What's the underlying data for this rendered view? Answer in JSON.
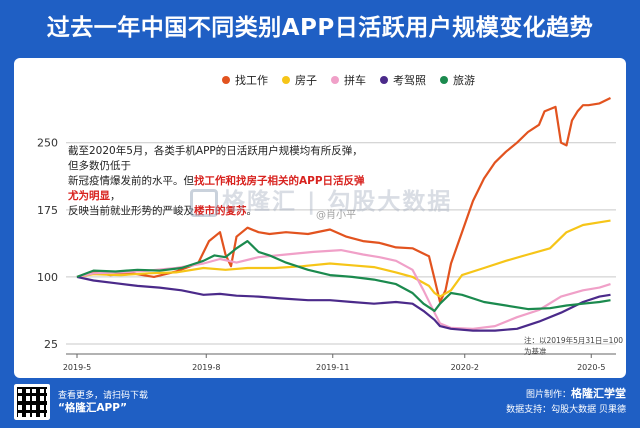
{
  "title": "过去一年中国不同类别APP日活跃用户规模变化趋势",
  "annotation": {
    "line1": "截至2020年5月，各类手机APP的日活跃用户规模均有所反弹，但多数仍低于",
    "line2_normal": "新冠疫情爆发前的水平。但",
    "line2_highlight": "找工作和找房子相关的APP日活反弹尤为明显",
    "line2_tail": "，",
    "line3_normal": "反映当前就业形势的严峻及",
    "line3_highlight": "楼市的复苏",
    "line3_tail": "。"
  },
  "watermark": {
    "brand1": "格隆汇",
    "brand2": "勾股大数据",
    "weibo": "@肖小平"
  },
  "note": "注：以2019年5月31日=100为基准",
  "footer": {
    "line1": "查看更多，请扫码下载",
    "app": "“格隆汇APP”",
    "made_by_label": "图片制作：",
    "made_by": "格隆汇学堂",
    "support": "数据支持：勾股大数据  贝果德"
  },
  "chart_data": {
    "type": "line",
    "title": "过去一年中国不同类别APP日活跃用户规模变化趋势",
    "xlabel": "",
    "ylabel": "",
    "xlim": [
      0,
      100
    ],
    "ylim": [
      25,
      300
    ],
    "y_ticks": [
      25,
      100,
      175,
      250
    ],
    "x_tick_positions": [
      2,
      25.5,
      48.5,
      72.5,
      95.5
    ],
    "x_tick_labels": [
      "2019-5",
      "2019-8",
      "2019-11",
      "2020-2",
      "2020-5"
    ],
    "grid": "horizontal",
    "legend_position": "top",
    "series": [
      {
        "name": "找工作",
        "color": "#e2531f",
        "points": [
          [
            2,
            100
          ],
          [
            5,
            106
          ],
          [
            8,
            102
          ],
          [
            12,
            104
          ],
          [
            16,
            100
          ],
          [
            20,
            106
          ],
          [
            24,
            115
          ],
          [
            26,
            140
          ],
          [
            28,
            150
          ],
          [
            29,
            125
          ],
          [
            30,
            112
          ],
          [
            31,
            145
          ],
          [
            33,
            155
          ],
          [
            35,
            150
          ],
          [
            37,
            148
          ],
          [
            40,
            150
          ],
          [
            44,
            148
          ],
          [
            48,
            153
          ],
          [
            51,
            145
          ],
          [
            54,
            140
          ],
          [
            57,
            138
          ],
          [
            60,
            133
          ],
          [
            63,
            132
          ],
          [
            66,
            123
          ],
          [
            67,
            98
          ],
          [
            68,
            72
          ],
          [
            69,
            85
          ],
          [
            70,
            115
          ],
          [
            72,
            150
          ],
          [
            74,
            185
          ],
          [
            76,
            210
          ],
          [
            78,
            228
          ],
          [
            80,
            240
          ],
          [
            82,
            250
          ],
          [
            84,
            262
          ],
          [
            86,
            270
          ],
          [
            87,
            285
          ],
          [
            89,
            290
          ],
          [
            90,
            250
          ],
          [
            91,
            247
          ],
          [
            92,
            275
          ],
          [
            93,
            285
          ],
          [
            94,
            292
          ],
          [
            95,
            292
          ],
          [
            97,
            294
          ],
          [
            99,
            300
          ]
        ]
      },
      {
        "name": "房子",
        "color": "#f6c518",
        "points": [
          [
            2,
            100
          ],
          [
            5,
            103
          ],
          [
            10,
            102
          ],
          [
            15,
            104
          ],
          [
            20,
            105
          ],
          [
            25,
            110
          ],
          [
            29,
            108
          ],
          [
            33,
            110
          ],
          [
            38,
            110
          ],
          [
            43,
            112
          ],
          [
            48,
            115
          ],
          [
            52,
            113
          ],
          [
            56,
            111
          ],
          [
            60,
            105
          ],
          [
            63,
            100
          ],
          [
            66,
            90
          ],
          [
            67,
            82
          ],
          [
            68,
            78
          ],
          [
            70,
            85
          ],
          [
            72,
            102
          ],
          [
            76,
            110
          ],
          [
            80,
            118
          ],
          [
            84,
            125
          ],
          [
            88,
            132
          ],
          [
            91,
            150
          ],
          [
            94,
            158
          ],
          [
            97,
            161
          ],
          [
            99,
            163
          ]
        ]
      },
      {
        "name": "拼车",
        "color": "#f0a0c8",
        "points": [
          [
            2,
            100
          ],
          [
            5,
            104
          ],
          [
            10,
            105
          ],
          [
            15,
            107
          ],
          [
            20,
            110
          ],
          [
            25,
            115
          ],
          [
            28,
            120
          ],
          [
            31,
            116
          ],
          [
            35,
            122
          ],
          [
            40,
            125
          ],
          [
            45,
            128
          ],
          [
            50,
            130
          ],
          [
            54,
            125
          ],
          [
            57,
            122
          ],
          [
            60,
            118
          ],
          [
            63,
            108
          ],
          [
            65,
            85
          ],
          [
            67,
            60
          ],
          [
            68,
            48
          ],
          [
            70,
            43
          ],
          [
            74,
            42
          ],
          [
            78,
            45
          ],
          [
            82,
            55
          ],
          [
            86,
            63
          ],
          [
            90,
            78
          ],
          [
            94,
            85
          ],
          [
            97,
            88
          ],
          [
            99,
            92
          ]
        ]
      },
      {
        "name": "考驾照",
        "color": "#4b2a8a",
        "points": [
          [
            2,
            100
          ],
          [
            5,
            96
          ],
          [
            9,
            93
          ],
          [
            13,
            90
          ],
          [
            17,
            88
          ],
          [
            21,
            85
          ],
          [
            25,
            80
          ],
          [
            28,
            81
          ],
          [
            31,
            79
          ],
          [
            35,
            78
          ],
          [
            39,
            76
          ],
          [
            44,
            74
          ],
          [
            48,
            74
          ],
          [
            52,
            72
          ],
          [
            56,
            70
          ],
          [
            60,
            72
          ],
          [
            63,
            70
          ],
          [
            65,
            62
          ],
          [
            67,
            52
          ],
          [
            68,
            45
          ],
          [
            70,
            42
          ],
          [
            74,
            40
          ],
          [
            78,
            40
          ],
          [
            82,
            42
          ],
          [
            86,
            50
          ],
          [
            90,
            60
          ],
          [
            94,
            72
          ],
          [
            97,
            78
          ],
          [
            99,
            80
          ]
        ]
      },
      {
        "name": "旅游",
        "color": "#1b8a4e",
        "points": [
          [
            2,
            100
          ],
          [
            5,
            107
          ],
          [
            9,
            106
          ],
          [
            13,
            108
          ],
          [
            17,
            107
          ],
          [
            21,
            110
          ],
          [
            25,
            118
          ],
          [
            27,
            124
          ],
          [
            29,
            122
          ],
          [
            31,
            132
          ],
          [
            33,
            140
          ],
          [
            35,
            128
          ],
          [
            37,
            124
          ],
          [
            40,
            116
          ],
          [
            44,
            108
          ],
          [
            48,
            102
          ],
          [
            52,
            100
          ],
          [
            56,
            97
          ],
          [
            60,
            92
          ],
          [
            63,
            82
          ],
          [
            65,
            70
          ],
          [
            67,
            62
          ],
          [
            68,
            70
          ],
          [
            70,
            82
          ],
          [
            72,
            80
          ],
          [
            76,
            72
          ],
          [
            80,
            68
          ],
          [
            84,
            64
          ],
          [
            88,
            65
          ],
          [
            91,
            68
          ],
          [
            94,
            70
          ],
          [
            97,
            72
          ],
          [
            99,
            74
          ]
        ]
      }
    ]
  }
}
